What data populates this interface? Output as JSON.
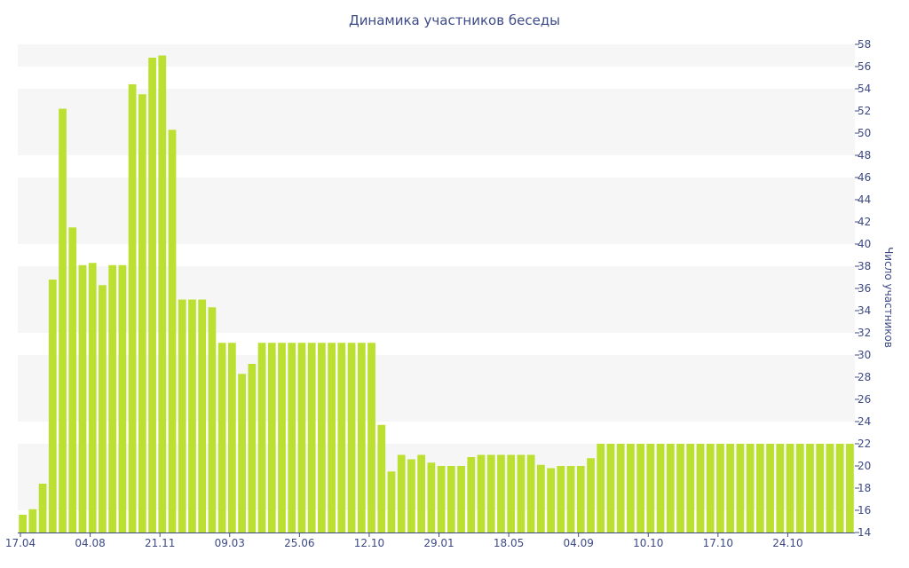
{
  "chart_data": {
    "type": "bar",
    "title": "Динамика участников беседы",
    "xlabel": "",
    "ylabel": "Число участников",
    "ylim": [
      14,
      58
    ],
    "y_ticks": [
      14,
      16,
      18,
      20,
      22,
      24,
      26,
      28,
      30,
      32,
      34,
      36,
      38,
      40,
      42,
      44,
      46,
      48,
      50,
      52,
      54,
      56,
      58
    ],
    "y_axis_position": "right",
    "grid": "alternating horizontal bands",
    "legend": "none",
    "bar_color": "#bce032",
    "band_color": "#f6f6f6",
    "text_color": "#3d4a86",
    "x_tick_labels": [
      {
        "label": "17.04",
        "index": 0
      },
      {
        "label": "04.08",
        "index": 7
      },
      {
        "label": "21.11",
        "index": 14
      },
      {
        "label": "09.03",
        "index": 21
      },
      {
        "label": "25.06",
        "index": 28
      },
      {
        "label": "12.10",
        "index": 35
      },
      {
        "label": "29.01",
        "index": 42
      },
      {
        "label": "18.05",
        "index": 49
      },
      {
        "label": "04.09",
        "index": 56
      },
      {
        "label": "10.10",
        "index": 63
      },
      {
        "label": "17.10",
        "index": 70
      },
      {
        "label": "24.10",
        "index": 77
      }
    ],
    "values": [
      15.6,
      16.1,
      18.4,
      36.8,
      52.2,
      41.5,
      38.1,
      38.3,
      36.3,
      38.1,
      38.1,
      54.4,
      53.5,
      56.8,
      57,
      50.3,
      35,
      35,
      35,
      34.3,
      31.1,
      31.1,
      28.3,
      29.2,
      31.1,
      31.1,
      31.1,
      31.1,
      31.1,
      31.1,
      31.1,
      31.1,
      31.1,
      31.1,
      31.1,
      31.1,
      23.7,
      19.5,
      21,
      20.6,
      21,
      20.3,
      20,
      20,
      20,
      20.8,
      21,
      21,
      21,
      21,
      21,
      21,
      20.1,
      19.8,
      20,
      20,
      20,
      20.7,
      22,
      22,
      22,
      22,
      22,
      22,
      22,
      22,
      22,
      22,
      22,
      22,
      22,
      22,
      22,
      22,
      22,
      22,
      22,
      22,
      22,
      22,
      22,
      22,
      22,
      22
    ]
  }
}
